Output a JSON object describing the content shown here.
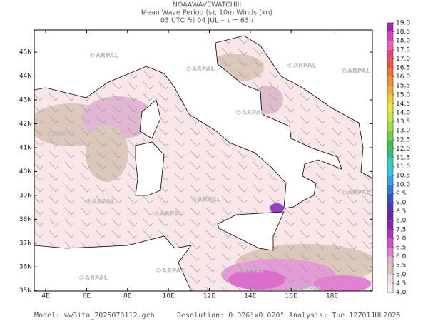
{
  "header": {
    "lines": [
      "NOAAWAVEWATCHIII",
      "Mean Wave Period (s), 10m Winds (kn)",
      "03 UTC Fri 04 JUL  –  τ = 63h"
    ]
  },
  "map": {
    "lon_range": [
      3.44,
      19.97
    ],
    "lat_range": [
      34.99,
      45.93
    ],
    "lon_ticks": [
      {
        "value": 4,
        "label": "4E"
      },
      {
        "value": 6,
        "label": "6E"
      },
      {
        "value": 8,
        "label": "8E"
      },
      {
        "value": 10,
        "label": "10E"
      },
      {
        "value": 12,
        "label": "12E"
      },
      {
        "value": 14,
        "label": "14E"
      },
      {
        "value": 16,
        "label": "16E"
      },
      {
        "value": 18,
        "label": "18E"
      }
    ],
    "lat_ticks": [
      {
        "value": 35,
        "label": "35N"
      },
      {
        "value": 36,
        "label": "36N"
      },
      {
        "value": 37,
        "label": "37N"
      },
      {
        "value": 38,
        "label": "38N"
      },
      {
        "value": 39,
        "label": "39N"
      },
      {
        "value": 40,
        "label": "40N"
      },
      {
        "value": 41,
        "label": "41N"
      },
      {
        "value": 42,
        "label": "42N"
      },
      {
        "value": 43,
        "label": "43N"
      },
      {
        "value": 44,
        "label": "44N"
      },
      {
        "value": 45,
        "label": "45N"
      }
    ],
    "watermark": "©ARPAL"
  },
  "colorbar": {
    "range": [
      4,
      19
    ],
    "ticks": [
      {
        "value": 4,
        "label": "4.0"
      },
      {
        "value": 4.5,
        "label": "4.5"
      },
      {
        "value": 5,
        "label": "5.0"
      },
      {
        "value": 5.5,
        "label": "5.5"
      },
      {
        "value": 6,
        "label": "6.0"
      },
      {
        "value": 6.5,
        "label": "6.5"
      },
      {
        "value": 7,
        "label": "7.0"
      },
      {
        "value": 7.5,
        "label": "7.5"
      },
      {
        "value": 8,
        "label": "8.0"
      },
      {
        "value": 8.5,
        "label": "8.5"
      },
      {
        "value": 9,
        "label": "9.0"
      },
      {
        "value": 9.5,
        "label": "9.5"
      },
      {
        "value": 10,
        "label": "10.0"
      },
      {
        "value": 10.5,
        "label": "10.5"
      },
      {
        "value": 11,
        "label": "11.0"
      },
      {
        "value": 11.5,
        "label": "11.5"
      },
      {
        "value": 12,
        "label": "12.0"
      },
      {
        "value": 12.5,
        "label": "12.5"
      },
      {
        "value": 13,
        "label": "13.0"
      },
      {
        "value": 13.5,
        "label": "13.5"
      },
      {
        "value": 14,
        "label": "14.0"
      },
      {
        "value": 14.5,
        "label": "14.5"
      },
      {
        "value": 15,
        "label": "15.0"
      },
      {
        "value": 15.5,
        "label": "15.5"
      },
      {
        "value": 16,
        "label": "16.0"
      },
      {
        "value": 16.5,
        "label": "16.5"
      },
      {
        "value": 17,
        "label": "17.0"
      },
      {
        "value": 17.5,
        "label": "17.5"
      },
      {
        "value": 18,
        "label": "18.0"
      },
      {
        "value": 18.5,
        "label": "18.5"
      },
      {
        "value": 19,
        "label": "19.0"
      }
    ],
    "colors": [
      "#f6f0f2",
      "#f3dde3",
      "#d9c5b8",
      "#e0b0d0",
      "#e080d0",
      "#d050c8",
      "#b030c0",
      "#8a20b8",
      "#6a20b0",
      "#5030c0",
      "#3050d0",
      "#3078e0",
      "#30a0e8",
      "#30c8e0",
      "#30d0b0",
      "#30c080",
      "#40c050",
      "#70d040",
      "#a0e040",
      "#c8e840",
      "#e8e840",
      "#f0d030",
      "#f0b030",
      "#f09030",
      "#f07030",
      "#f05040",
      "#f04080",
      "#f060b0",
      "#e040c0",
      "#b020b0"
    ]
  },
  "footer": {
    "model": "Model: ww3ita_2025070112.grb",
    "resolution": "Resolution: 0.026°x0.020°",
    "analysis": "Analysis: Tue 12Z01JUL2025"
  }
}
